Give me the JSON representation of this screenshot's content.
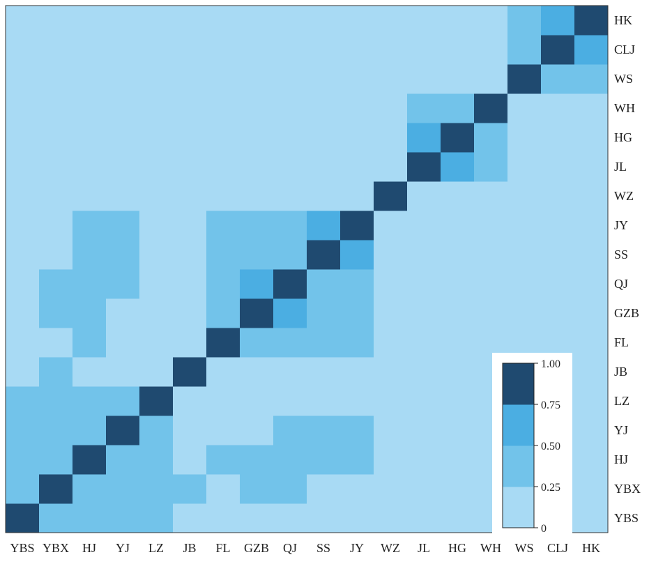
{
  "chart_data": {
    "type": "heatmap",
    "title": "",
    "xlabel": "",
    "ylabel": "",
    "categories": [
      "YBS",
      "YBX",
      "HJ",
      "YJ",
      "LZ",
      "JB",
      "FL",
      "GZB",
      "QJ",
      "SS",
      "JY",
      "WZ",
      "JL",
      "HG",
      "WH",
      "WS",
      "CLJ",
      "HK"
    ],
    "matrix": [
      [
        1.0,
        0.3,
        0.3,
        0.3,
        0.3,
        0.1,
        0.1,
        0.1,
        0.1,
        0.1,
        0.1,
        0.1,
        0.1,
        0.1,
        0.1,
        0.1,
        0.1,
        0.1
      ],
      [
        0.3,
        1.0,
        0.3,
        0.3,
        0.3,
        0.3,
        0.1,
        0.3,
        0.3,
        0.1,
        0.1,
        0.1,
        0.1,
        0.1,
        0.1,
        0.1,
        0.1,
        0.1
      ],
      [
        0.3,
        0.3,
        1.0,
        0.3,
        0.3,
        0.1,
        0.3,
        0.3,
        0.3,
        0.3,
        0.3,
        0.1,
        0.1,
        0.1,
        0.1,
        0.1,
        0.1,
        0.1
      ],
      [
        0.3,
        0.3,
        0.3,
        1.0,
        0.3,
        0.1,
        0.1,
        0.1,
        0.3,
        0.3,
        0.3,
        0.1,
        0.1,
        0.1,
        0.1,
        0.1,
        0.1,
        0.1
      ],
      [
        0.3,
        0.3,
        0.3,
        0.3,
        1.0,
        0.1,
        0.1,
        0.1,
        0.1,
        0.1,
        0.1,
        0.1,
        0.1,
        0.1,
        0.1,
        0.1,
        0.1,
        0.1
      ],
      [
        0.1,
        0.3,
        0.1,
        0.1,
        0.1,
        1.0,
        0.1,
        0.1,
        0.1,
        0.1,
        0.1,
        0.1,
        0.1,
        0.1,
        0.1,
        0.1,
        0.1,
        0.1
      ],
      [
        0.1,
        0.1,
        0.3,
        0.1,
        0.1,
        0.1,
        1.0,
        0.3,
        0.3,
        0.3,
        0.3,
        0.1,
        0.1,
        0.1,
        0.1,
        0.1,
        0.1,
        0.1
      ],
      [
        0.1,
        0.3,
        0.3,
        0.1,
        0.1,
        0.1,
        0.3,
        1.0,
        0.6,
        0.3,
        0.3,
        0.1,
        0.1,
        0.1,
        0.1,
        0.1,
        0.1,
        0.1
      ],
      [
        0.1,
        0.3,
        0.3,
        0.3,
        0.1,
        0.1,
        0.3,
        0.6,
        1.0,
        0.3,
        0.3,
        0.1,
        0.1,
        0.1,
        0.1,
        0.1,
        0.1,
        0.1
      ],
      [
        0.1,
        0.1,
        0.3,
        0.3,
        0.1,
        0.1,
        0.3,
        0.3,
        0.3,
        1.0,
        0.6,
        0.1,
        0.1,
        0.1,
        0.1,
        0.1,
        0.1,
        0.1
      ],
      [
        0.1,
        0.1,
        0.3,
        0.3,
        0.1,
        0.1,
        0.3,
        0.3,
        0.3,
        0.6,
        1.0,
        0.1,
        0.1,
        0.1,
        0.1,
        0.1,
        0.1,
        0.1
      ],
      [
        0.1,
        0.1,
        0.1,
        0.1,
        0.1,
        0.1,
        0.1,
        0.1,
        0.1,
        0.1,
        0.1,
        1.0,
        0.1,
        0.1,
        0.1,
        0.1,
        0.1,
        0.1
      ],
      [
        0.1,
        0.1,
        0.1,
        0.1,
        0.1,
        0.1,
        0.1,
        0.1,
        0.1,
        0.1,
        0.1,
        0.1,
        1.0,
        0.6,
        0.3,
        0.1,
        0.1,
        0.1
      ],
      [
        0.1,
        0.1,
        0.1,
        0.1,
        0.1,
        0.1,
        0.1,
        0.1,
        0.1,
        0.1,
        0.1,
        0.1,
        0.6,
        1.0,
        0.3,
        0.1,
        0.1,
        0.1
      ],
      [
        0.1,
        0.1,
        0.1,
        0.1,
        0.1,
        0.1,
        0.1,
        0.1,
        0.1,
        0.1,
        0.1,
        0.1,
        0.3,
        0.3,
        1.0,
        0.1,
        0.1,
        0.1
      ],
      [
        0.1,
        0.1,
        0.1,
        0.1,
        0.1,
        0.1,
        0.1,
        0.1,
        0.1,
        0.1,
        0.1,
        0.1,
        0.1,
        0.1,
        0.1,
        1.0,
        0.3,
        0.3
      ],
      [
        0.1,
        0.1,
        0.1,
        0.1,
        0.1,
        0.1,
        0.1,
        0.1,
        0.1,
        0.1,
        0.1,
        0.1,
        0.1,
        0.1,
        0.1,
        0.3,
        1.0,
        0.6
      ],
      [
        0.1,
        0.1,
        0.1,
        0.1,
        0.1,
        0.1,
        0.1,
        0.1,
        0.1,
        0.1,
        0.1,
        0.1,
        0.1,
        0.1,
        0.1,
        0.3,
        0.6,
        1.0
      ]
    ],
    "value_range": [
      0,
      1
    ],
    "color_bins": [
      {
        "min": 0.0,
        "max": 0.25,
        "color": "#a8daf4"
      },
      {
        "min": 0.25,
        "max": 0.5,
        "color": "#72c3ea"
      },
      {
        "min": 0.5,
        "max": 0.75,
        "color": "#4baee2"
      },
      {
        "min": 0.75,
        "max": 1.0,
        "color": "#1f4a70"
      }
    ],
    "colorbar_ticks": [
      "0",
      "0.25",
      "0.50",
      "0.75",
      "1.00"
    ],
    "legend": "colorbar bottom-right",
    "grid": false
  }
}
